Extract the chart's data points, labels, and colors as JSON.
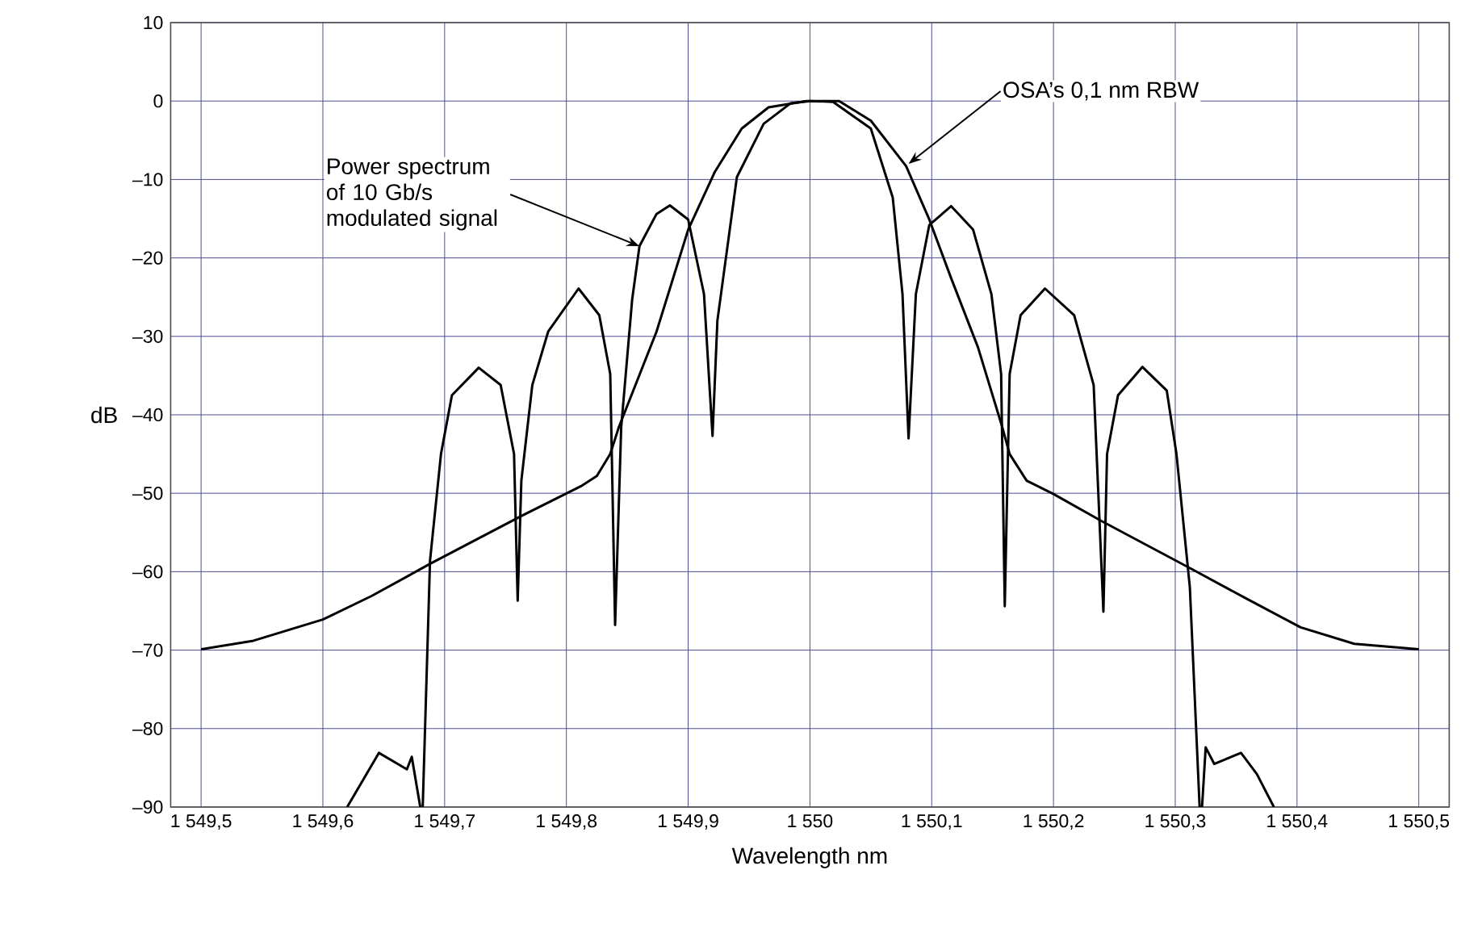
{
  "chart_data": {
    "type": "line",
    "xlabel": "Wavelength   nm",
    "ylabel": "dB",
    "xlim": [
      1549.475,
      1550.525
    ],
    "ylim": [
      -90,
      10
    ],
    "xticks": [
      {
        "value": 1549.5,
        "label": "1 549,5"
      },
      {
        "value": 1549.6,
        "label": "1 549,6"
      },
      {
        "value": 1549.7,
        "label": "1 549,7"
      },
      {
        "value": 1549.8,
        "label": "1 549,8"
      },
      {
        "value": 1549.9,
        "label": "1 549,9"
      },
      {
        "value": 1550,
        "label": "1 550"
      },
      {
        "value": 1550.1,
        "label": "1 550,1"
      },
      {
        "value": 1550.2,
        "label": "1 550,2"
      },
      {
        "value": 1550.3,
        "label": "1 550,3"
      },
      {
        "value": 1550.4,
        "label": "1 550,4"
      },
      {
        "value": 1550.5,
        "label": "1 550,5"
      }
    ],
    "yticks": [
      {
        "value": 10,
        "label": "10"
      },
      {
        "value": 0,
        "label": "0"
      },
      {
        "value": -10,
        "label": "–10"
      },
      {
        "value": -20,
        "label": "–20"
      },
      {
        "value": -30,
        "label": "–30"
      },
      {
        "value": -40,
        "label": "–40"
      },
      {
        "value": -50,
        "label": "–50"
      },
      {
        "value": -60,
        "label": "–60"
      },
      {
        "value": -70,
        "label": "–70"
      },
      {
        "value": -80,
        "label": "–80"
      },
      {
        "value": -90,
        "label": "–90"
      }
    ],
    "grid": true,
    "series": [
      {
        "color": "#000000",
        "x": [
          1549.62,
          1549.646,
          1549.669,
          1549.673,
          1549.68,
          null,
          1549.682,
          1549.688,
          1549.697,
          1549.706,
          1549.728,
          1549.746,
          1549.757,
          1549.76,
          1549.763,
          1549.772,
          1549.785,
          1549.81,
          1549.827,
          1549.836,
          1549.84,
          1549.845,
          1549.854,
          1549.86,
          1549.874,
          1549.885,
          1549.9,
          1549.913,
          1549.92,
          1549.924,
          1549.94,
          1549.962,
          1549.984,
          1550,
          1550.019,
          1550.05,
          1550.068,
          1550.076,
          1550.081,
          1550.087,
          1550.098,
          1550.116,
          1550.134,
          1550.149,
          1550.157,
          1550.16,
          1550.164,
          1550.173,
          1550.193,
          1550.217,
          1550.233,
          1550.241,
          1550.244,
          1550.253,
          1550.273,
          1550.293,
          1550.301,
          1550.312,
          1550.32,
          null,
          1550.322,
          1550.325,
          1550.332,
          1550.354,
          1550.367,
          1550.381
        ],
        "values": [
          -90,
          -83.1,
          -85.2,
          -83.6,
          -90,
          null,
          -90,
          -58.6,
          -45,
          -37.5,
          -34,
          -36.2,
          -45,
          -63.7,
          -48.4,
          -36.2,
          -29.4,
          -23.9,
          -27.3,
          -34.8,
          -66.8,
          -41.6,
          -25.3,
          -18.5,
          -14.4,
          -13.3,
          -15.1,
          -24.6,
          -42.7,
          -28,
          -9.7,
          -2.9,
          -0.3,
          0,
          -0.1,
          -3.5,
          -12.3,
          -24.6,
          -43,
          -24.6,
          -15.8,
          -13.4,
          -16.4,
          -24.6,
          -34.8,
          -64.4,
          -34.8,
          -27.3,
          -23.9,
          -27.3,
          -36.2,
          -65.1,
          -45,
          -37.5,
          -33.9,
          -36.9,
          -45,
          -62,
          -90,
          null,
          -90,
          -82.4,
          -84.5,
          -83.1,
          -85.8,
          -90
        ]
      },
      {
        "color": "#000000",
        "x": [
          1549.5,
          1549.543,
          1549.6,
          1549.64,
          1549.688,
          1549.763,
          1549.812,
          1549.825,
          1549.836,
          1549.843,
          1549.874,
          1549.9,
          1549.922,
          1549.944,
          1549.966,
          1549.997,
          1550.024,
          1550.05,
          1550.079,
          1550.098,
          1550.116,
          1550.138,
          1550.158,
          1550.164,
          1550.178,
          1550.2,
          1550.239,
          1550.314,
          1550.358,
          1550.403,
          1550.447,
          1550.5
        ],
        "values": [
          -69.9,
          -68.8,
          -66.1,
          -63.1,
          -59,
          -52.9,
          -49.1,
          -47.8,
          -45,
          -41.6,
          -29.4,
          -16.4,
          -9,
          -3.5,
          -0.8,
          0,
          0,
          -2.5,
          -8.3,
          -15.1,
          -22.6,
          -31.4,
          -41.6,
          -45,
          -48.4,
          -50.1,
          -53.5,
          -59.7,
          -63.4,
          -67.1,
          -69.2,
          -69.9
        ]
      }
    ],
    "annotations": [
      {
        "text": "Power spectrum of 10 Gb/s modulated signal",
        "x": 1549.86,
        "y": -18.5
      },
      {
        "text": "OSA’s 0,1 nm RBW",
        "x": 1550.081,
        "y": -8
      }
    ]
  }
}
